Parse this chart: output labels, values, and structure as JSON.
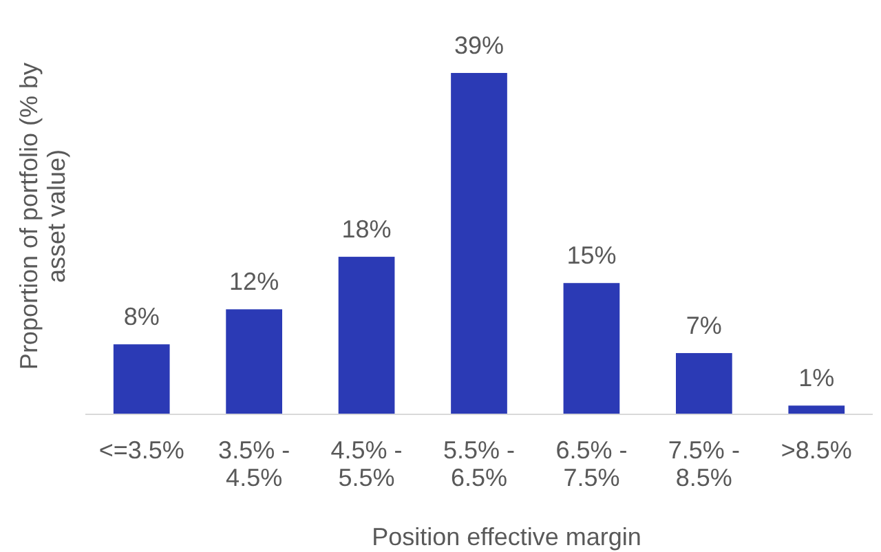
{
  "chart_data": {
    "type": "bar",
    "xlabel": "Position effective margin",
    "ylabel": "Proportion of portfolio (% by asset value)",
    "categories": [
      "<=3.5%",
      "3.5% - 4.5%",
      "4.5% - 5.5%",
      "5.5% - 6.5%",
      "6.5% - 7.5%",
      "7.5% - 8.5%",
      ">8.5%"
    ],
    "values": [
      8,
      12,
      18,
      39,
      15,
      7,
      1
    ],
    "value_labels": [
      "8%",
      "12%",
      "18%",
      "39%",
      "15%",
      "7%",
      "1%"
    ],
    "color": "#2b3ab5"
  }
}
